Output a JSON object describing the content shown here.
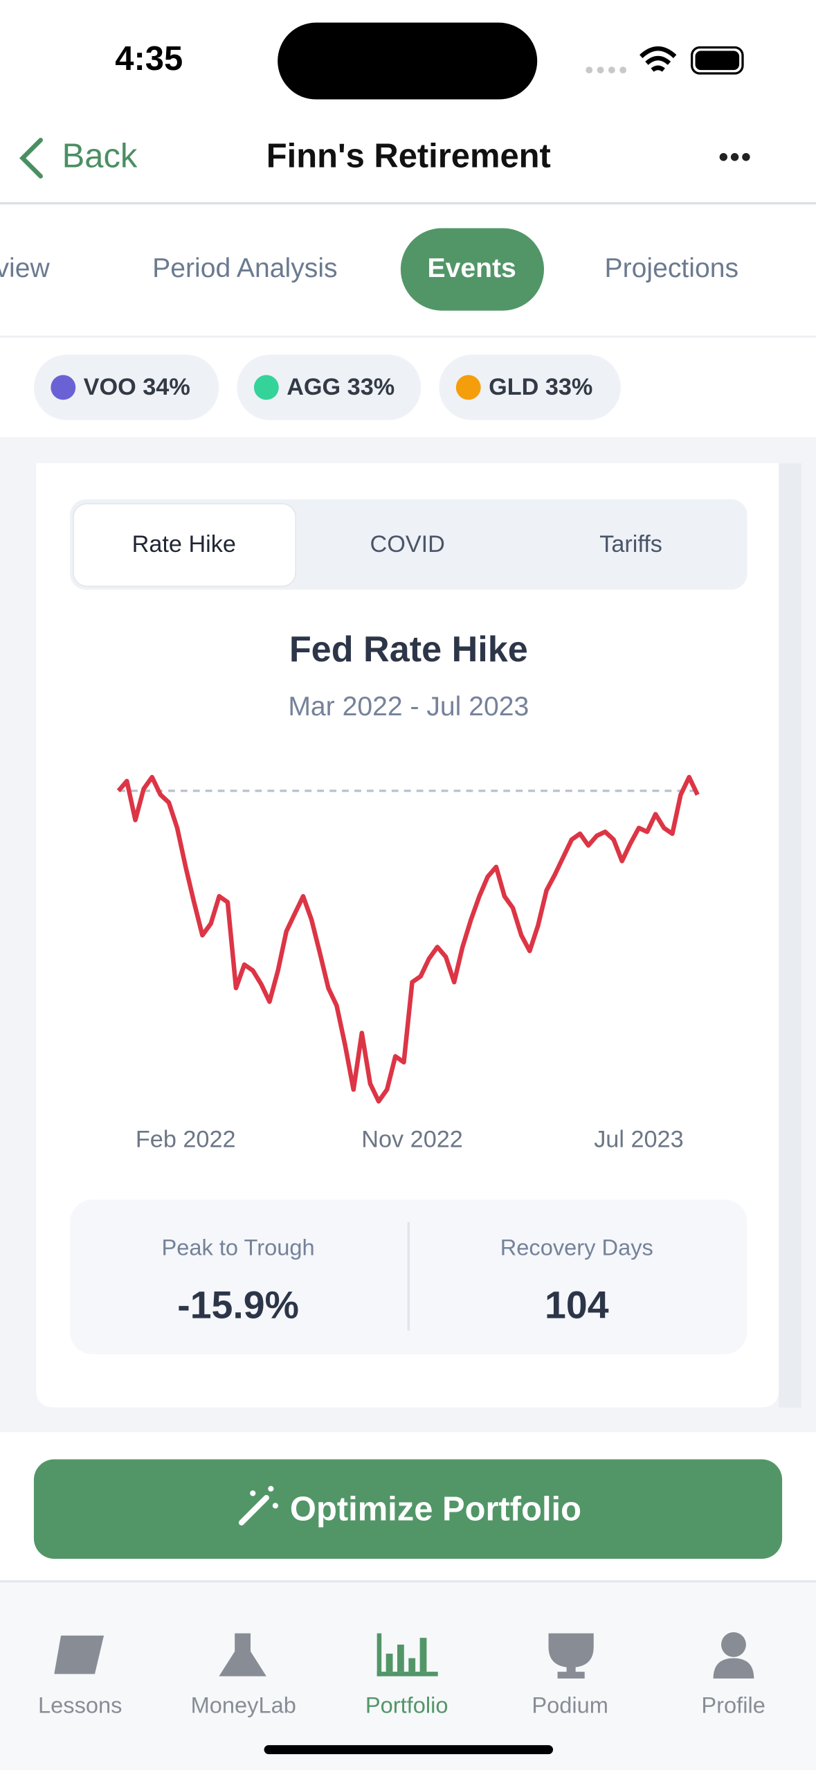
{
  "status_bar": {
    "time": "4:35"
  },
  "nav": {
    "back": "Back",
    "title": "Finn's Retirement"
  },
  "tabs": [
    "Overview",
    "Period Analysis",
    "Events",
    "Projections"
  ],
  "allocations": [
    "VOO 34%",
    "AGG 33%",
    "GLD 33%"
  ],
  "event_tabs": [
    "Rate Hike",
    "COVID",
    "Tariffs"
  ],
  "chart_data": {
    "type": "line",
    "title": "Fed Rate Hike",
    "subtitle": "Mar 2022 - Jul 2023",
    "color": "#dc3545",
    "categories": [
      null,
      null,
      null,
      null,
      null,
      null,
      null,
      null,
      "Feb 2022",
      null,
      null,
      null,
      null,
      null,
      null,
      null,
      null,
      null,
      null,
      null,
      null,
      null,
      null,
      null,
      null,
      null,
      null,
      null,
      null,
      null,
      null,
      null,
      null,
      null,
      null,
      "Nov 2022",
      null,
      null,
      null,
      null,
      null,
      null,
      null,
      null,
      null,
      null,
      null,
      null,
      null,
      null,
      null,
      null,
      null,
      null,
      null,
      null,
      null,
      null,
      null,
      null,
      null,
      null,
      "Jul 2023",
      null,
      null,
      null,
      null,
      null,
      null,
      null
    ],
    "values": [
      0,
      0.5,
      -1.5,
      0.1,
      0.7,
      -0.2,
      -0.6,
      -1.9,
      -3.9,
      -5.7,
      -7.4,
      -6.8,
      -5.4,
      -5.7,
      -10.1,
      -8.9,
      -9.2,
      -9.9,
      -10.8,
      -9.2,
      -7.2,
      -6.3,
      -5.4,
      -6.6,
      -8.3,
      -10.1,
      -11.0,
      -13.0,
      -15.3,
      -12.4,
      -15.0,
      -15.9,
      -15.3,
      -13.6,
      -13.9,
      -9.8,
      -9.5,
      -8.6,
      -8.0,
      -8.5,
      -9.8,
      -8.0,
      -6.6,
      -5.4,
      -4.4,
      -3.9,
      -5.4,
      -6.0,
      -7.4,
      -8.2,
      -6.9,
      -5.1,
      -4.3,
      -3.4,
      -2.5,
      -2.2,
      -2.8,
      -2.3,
      -2.1,
      -2.5,
      -3.6,
      -2.7,
      -1.9,
      -2.1,
      -1.2,
      -1.9,
      -2.2,
      -0.2,
      0.7,
      -0.2
    ]
  },
  "stats": [
    {
      "label": "Peak to Trough",
      "value": "-15.9%"
    },
    {
      "label": "Recovery Days",
      "value": "104"
    }
  ],
  "button": "Optimize Portfolio",
  "tab_bar": [
    "Lessons",
    "MoneyLab",
    "Portfolio",
    "Podium",
    "Profile"
  ]
}
